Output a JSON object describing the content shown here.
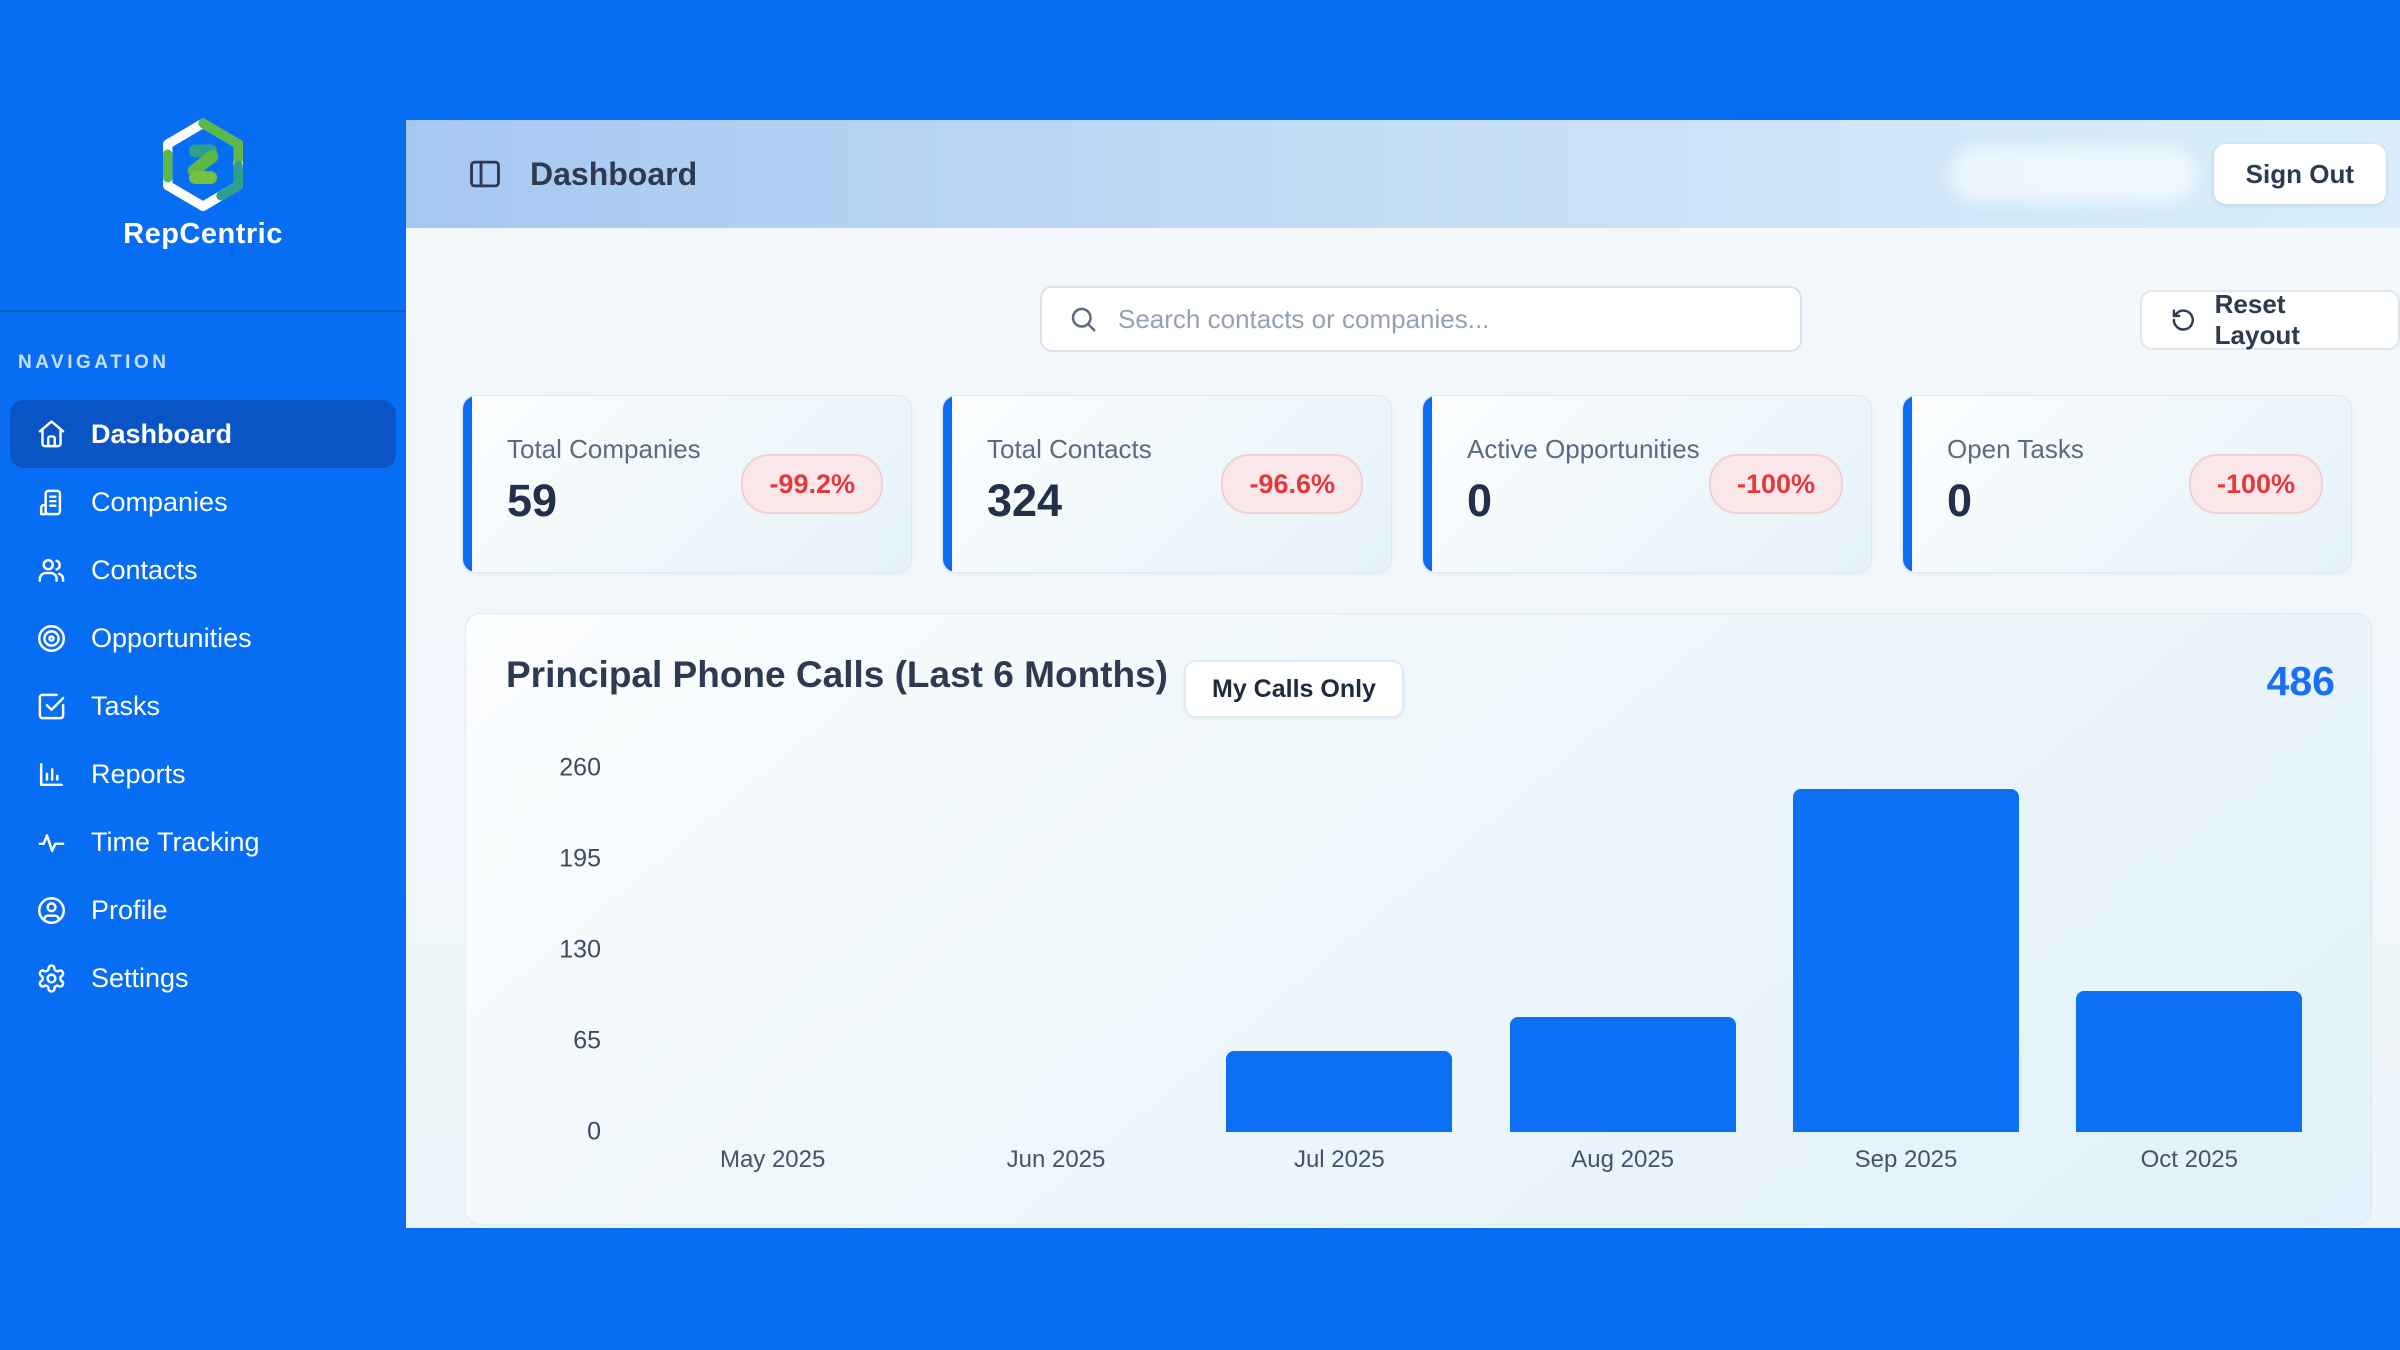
{
  "brand": {
    "name": "RepCentric"
  },
  "sidebar": {
    "section_label": "NAVIGATION",
    "items": [
      {
        "label": "Dashboard",
        "icon": "home-icon",
        "active": true
      },
      {
        "label": "Companies",
        "icon": "building-icon",
        "active": false
      },
      {
        "label": "Contacts",
        "icon": "users-icon",
        "active": false
      },
      {
        "label": "Opportunities",
        "icon": "target-icon",
        "active": false
      },
      {
        "label": "Tasks",
        "icon": "check-square-icon",
        "active": false
      },
      {
        "label": "Reports",
        "icon": "bar-chart-icon",
        "active": false
      },
      {
        "label": "Time Tracking",
        "icon": "activity-icon",
        "active": false
      },
      {
        "label": "Profile",
        "icon": "user-circle-icon",
        "active": false
      },
      {
        "label": "Settings",
        "icon": "gear-icon",
        "active": false
      }
    ]
  },
  "header": {
    "title": "Dashboard",
    "sign_out_label": "Sign Out",
    "toggle_icon": "panel-left-icon"
  },
  "toolbar": {
    "search_placeholder": "Search contacts or companies...",
    "search_value": "",
    "search_icon": "search-icon",
    "reset_layout_label": "Reset Layout",
    "reset_icon": "rotate-ccw-icon"
  },
  "stats": {
    "cards": [
      {
        "label": "Total Companies",
        "value": "59",
        "change": "-99.2%"
      },
      {
        "label": "Total Contacts",
        "value": "324",
        "change": "-96.6%"
      },
      {
        "label": "Active Opportunities",
        "value": "0",
        "change": "-100%"
      },
      {
        "label": "Open Tasks",
        "value": "0",
        "change": "-100%"
      }
    ]
  },
  "chart_card": {
    "title": "Principal Phone Calls (Last 6 Months)",
    "filter_button_label": "My Calls Only",
    "total_calls": "486"
  },
  "chart_data": {
    "type": "bar",
    "title": "Principal Phone Calls (Last 6 Months)",
    "categories": [
      "May 2025",
      "Jun 2025",
      "Jul 2025",
      "Aug 2025",
      "Sep 2025",
      "Oct 2025"
    ],
    "values": [
      0,
      0,
      58,
      82,
      245,
      101
    ],
    "xlabel": "",
    "ylabel": "",
    "ylim": [
      0,
      260
    ],
    "yticks": [
      0,
      65,
      130,
      195,
      260
    ],
    "grid": false,
    "legend": false,
    "bar_color": "#0b70f4"
  },
  "colors": {
    "brand_blue": "#076ef4",
    "active_nav": "#0a55c5",
    "bar_blue": "#0b70f4",
    "negative_badge_text": "#e03a3e",
    "negative_badge_bg": "#f9e7e9",
    "total_accent": "#1a70f5"
  }
}
